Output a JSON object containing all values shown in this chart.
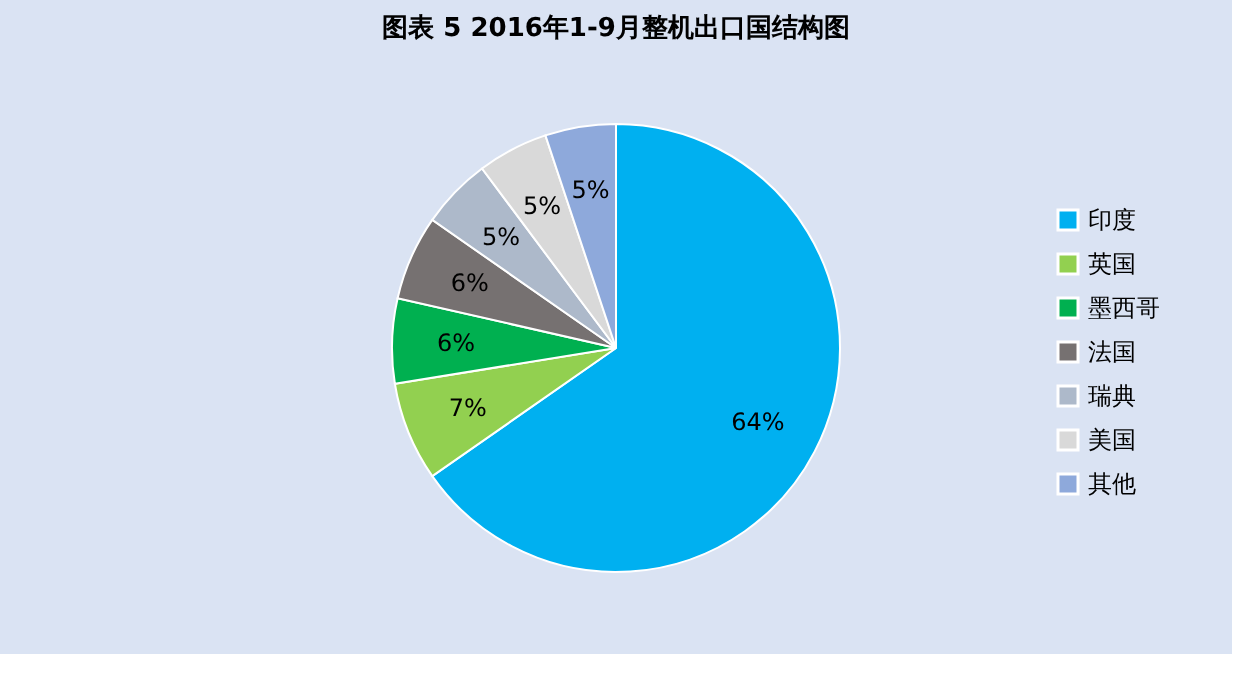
{
  "chart_data": {
    "type": "pie",
    "title": "图表 5   2016年1-9月整机出口国结构图",
    "categories": [
      "印度",
      "英国",
      "墨西哥",
      "法国",
      "瑞典",
      "美国",
      "其他"
    ],
    "values": [
      64,
      7,
      6,
      6,
      5,
      5,
      5
    ],
    "colors": [
      "#00b0f0",
      "#92d050",
      "#00b050",
      "#767171",
      "#adb9ca",
      "#d9d9d9",
      "#8ea9db"
    ],
    "value_labels": [
      "64%",
      "7%",
      "6%",
      "6%",
      "5%",
      "5%",
      "5%"
    ],
    "legend": "right"
  }
}
